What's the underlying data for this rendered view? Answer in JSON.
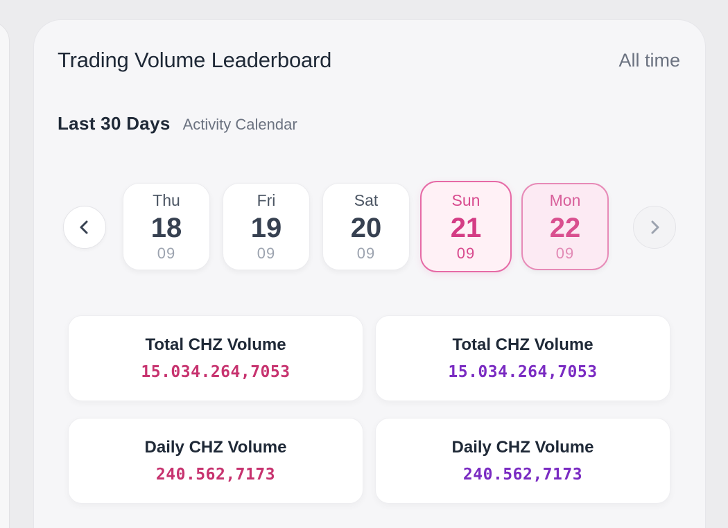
{
  "header": {
    "title": "Trading Volume Leaderboard",
    "range": "All time"
  },
  "subheader": {
    "main": "Last 30 Days",
    "sub": "Activity Calendar"
  },
  "calendar": {
    "days": [
      {
        "weekday": "Thu",
        "day": "18",
        "month": "09"
      },
      {
        "weekday": "Fri",
        "day": "19",
        "month": "09"
      },
      {
        "weekday": "Sat",
        "day": "20",
        "month": "09"
      },
      {
        "weekday": "Sun",
        "day": "21",
        "month": "09"
      },
      {
        "weekday": "Mon",
        "day": "22",
        "month": "09"
      }
    ],
    "prev_icon": "chevron-left-icon",
    "next_icon": "chevron-right-icon"
  },
  "stats": [
    {
      "label": "Total CHZ Volume",
      "value": "15.034.264,7053",
      "color": "#c7336f"
    },
    {
      "label": "Total CHZ Volume",
      "value": "15.034.264,7053",
      "color": "#7a2bc2"
    },
    {
      "label": "Daily CHZ Volume",
      "value": "240.562,7173",
      "color": "#c7336f"
    },
    {
      "label": "Daily CHZ Volume",
      "value": "240.562,7173",
      "color": "#7a2bc2"
    }
  ]
}
